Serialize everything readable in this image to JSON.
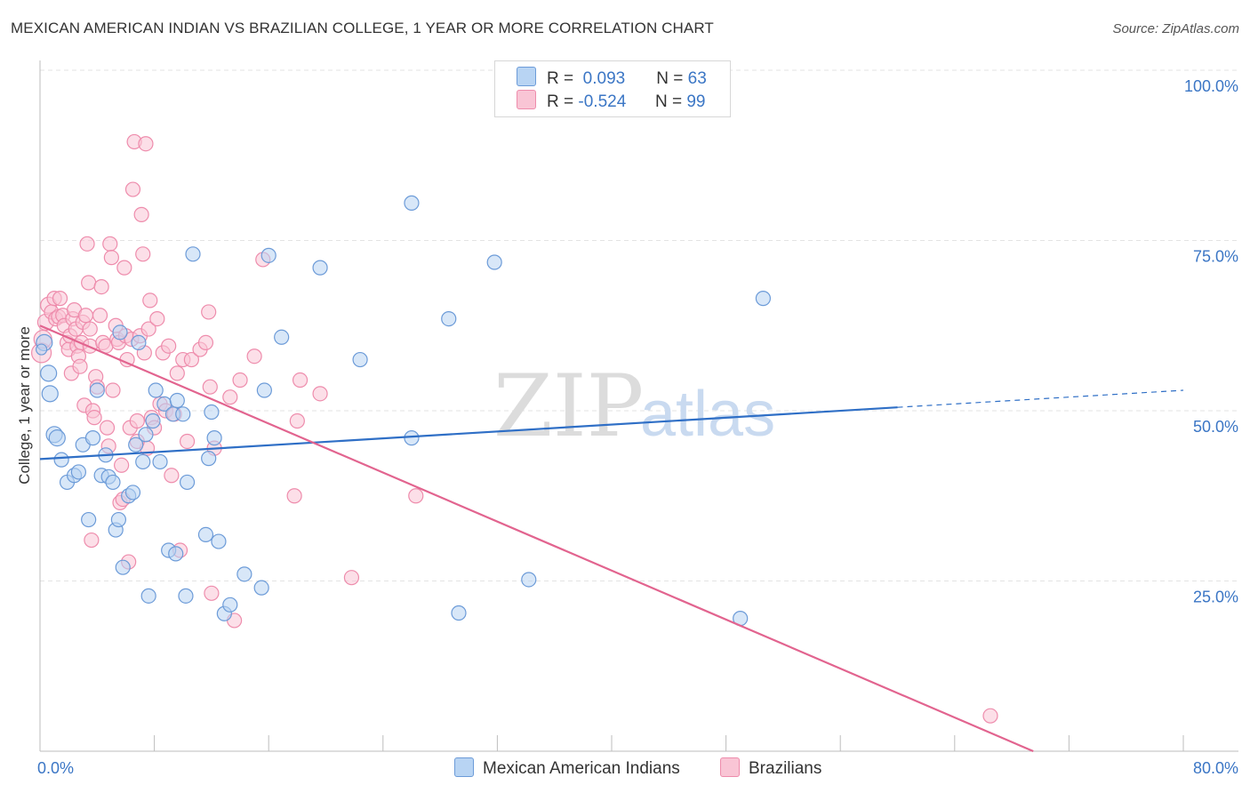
{
  "title": "MEXICAN AMERICAN INDIAN VS BRAZILIAN COLLEGE, 1 YEAR OR MORE CORRELATION CHART",
  "source": "Source: ZipAtlas.com",
  "watermark": {
    "zip": "ZIP",
    "atlas": "atlas"
  },
  "colors": {
    "blue_fill": "#b8d4f3",
    "blue_stroke": "#6c9bd8",
    "blue_line": "#2f6fc6",
    "pink_fill": "#f9c5d5",
    "pink_stroke": "#ee8cac",
    "pink_line": "#e2648f",
    "grid": "#e3e3e3",
    "tick_text": "#3b76c5"
  },
  "legend": {
    "rows": [
      {
        "r_label": "R =",
        "r_value": "0.093",
        "n_label": "N =",
        "n_value": "63",
        "color": "#b8d4f3",
        "border": "#6c9bd8"
      },
      {
        "r_label": "R =",
        "r_value": "-0.524",
        "n_label": "N =",
        "n_value": "99",
        "color": "#f9c5d5",
        "border": "#ee8cac"
      }
    ]
  },
  "bottom_legend": [
    {
      "label": "Mexican American Indians",
      "color": "#b8d4f3",
      "border": "#6c9bd8"
    },
    {
      "label": "Brazilians",
      "color": "#f9c5d5",
      "border": "#ee8cac"
    }
  ],
  "chart_data": {
    "type": "scatter",
    "title": "MEXICAN AMERICAN INDIAN VS BRAZILIAN COLLEGE, 1 YEAR OR MORE CORRELATION CHART",
    "xlabel": "",
    "ylabel": "College, 1 year or more",
    "xlim": [
      0,
      80
    ],
    "ylim": [
      0,
      100
    ],
    "x_tick_labels": [
      {
        "value": 0,
        "label": "0.0%"
      },
      {
        "value": 80,
        "label": "80.0%"
      }
    ],
    "y_tick_labels": [
      {
        "value": 100,
        "label": "100.0%"
      },
      {
        "value": 75,
        "label": "75.0%"
      },
      {
        "value": 50,
        "label": "50.0%"
      },
      {
        "value": 25,
        "label": "25.0%"
      }
    ],
    "y_gridlines": [
      100,
      75,
      50,
      25
    ],
    "series": [
      {
        "name": "Mexican American Indians",
        "R": 0.093,
        "N": 63,
        "trend": {
          "x0": 0,
          "y0": 42.9,
          "x1": 60,
          "y1": 50.5,
          "dashed_to_x": 80,
          "dashed_to_y": 53.0
        },
        "points": [
          [
            0.3,
            60.0,
            9
          ],
          [
            0.6,
            55.5,
            9
          ],
          [
            0.7,
            52.5,
            9
          ],
          [
            1.0,
            46.5,
            9
          ],
          [
            1.2,
            46.0,
            9
          ],
          [
            1.5,
            42.8,
            8
          ],
          [
            1.9,
            39.5,
            8
          ],
          [
            2.4,
            40.5,
            8
          ],
          [
            2.7,
            41.0,
            8
          ],
          [
            3.0,
            45.0,
            8
          ],
          [
            3.4,
            34.0,
            8
          ],
          [
            3.7,
            46.0,
            8
          ],
          [
            4.0,
            53.0,
            8
          ],
          [
            4.3,
            40.5,
            8
          ],
          [
            4.6,
            43.5,
            8
          ],
          [
            4.8,
            40.3,
            8
          ],
          [
            5.1,
            39.5,
            8
          ],
          [
            5.3,
            32.5,
            8
          ],
          [
            5.5,
            34.0,
            8
          ],
          [
            5.6,
            61.5,
            8
          ],
          [
            5.8,
            27.0,
            8
          ],
          [
            6.2,
            37.5,
            8
          ],
          [
            6.5,
            38.0,
            8
          ],
          [
            6.7,
            45.0,
            8
          ],
          [
            6.9,
            60.0,
            8
          ],
          [
            7.2,
            42.5,
            8
          ],
          [
            7.4,
            46.5,
            8
          ],
          [
            7.6,
            22.8,
            8
          ],
          [
            7.9,
            48.5,
            8
          ],
          [
            8.1,
            53.0,
            8
          ],
          [
            8.4,
            42.5,
            8
          ],
          [
            8.7,
            51.0,
            8
          ],
          [
            9.0,
            29.5,
            8
          ],
          [
            9.3,
            49.5,
            8
          ],
          [
            9.5,
            29.0,
            8
          ],
          [
            9.6,
            51.5,
            8
          ],
          [
            10.0,
            49.5,
            8
          ],
          [
            10.2,
            22.8,
            8
          ],
          [
            10.3,
            39.5,
            8
          ],
          [
            10.7,
            73.0,
            8
          ],
          [
            11.6,
            31.8,
            8
          ],
          [
            11.8,
            43.0,
            8
          ],
          [
            12.0,
            49.8,
            8
          ],
          [
            12.2,
            46.0,
            8
          ],
          [
            12.5,
            30.8,
            8
          ],
          [
            12.9,
            20.2,
            8
          ],
          [
            13.3,
            21.5,
            8
          ],
          [
            14.3,
            26.0,
            8
          ],
          [
            15.5,
            24.0,
            8
          ],
          [
            15.7,
            53.0,
            8
          ],
          [
            16.0,
            72.8,
            8
          ],
          [
            16.9,
            60.8,
            8
          ],
          [
            19.6,
            71.0,
            8
          ],
          [
            22.4,
            57.5,
            8
          ],
          [
            26.0,
            80.5,
            8
          ],
          [
            26.0,
            46.0,
            8
          ],
          [
            28.6,
            63.5,
            8
          ],
          [
            29.3,
            20.3,
            8
          ],
          [
            31.8,
            71.8,
            8
          ],
          [
            34.2,
            25.2,
            8
          ],
          [
            49.0,
            19.5,
            8
          ],
          [
            50.6,
            66.5,
            8
          ],
          [
            0.1,
            59.0,
            6
          ]
        ]
      },
      {
        "name": "Brazilians",
        "R": -0.524,
        "N": 99,
        "trend": {
          "x0": 0,
          "y0": 62.5,
          "x1": 69.5,
          "y1": 0
        },
        "points": [
          [
            0.1,
            58.5,
            11
          ],
          [
            0.2,
            60.5,
            10
          ],
          [
            0.4,
            63.0,
            9
          ],
          [
            0.6,
            65.5,
            9
          ],
          [
            0.8,
            64.5,
            8
          ],
          [
            1.0,
            66.5,
            8
          ],
          [
            1.1,
            63.5,
            8
          ],
          [
            1.3,
            63.8,
            8
          ],
          [
            1.4,
            66.5,
            8
          ],
          [
            1.6,
            64.0,
            8
          ],
          [
            1.7,
            62.5,
            8
          ],
          [
            1.9,
            60.0,
            8
          ],
          [
            2.0,
            59.0,
            8
          ],
          [
            2.1,
            61.0,
            8
          ],
          [
            2.2,
            55.5,
            8
          ],
          [
            2.3,
            63.5,
            8
          ],
          [
            2.4,
            64.8,
            8
          ],
          [
            2.5,
            62.0,
            8
          ],
          [
            2.6,
            59.5,
            8
          ],
          [
            2.7,
            58.0,
            8
          ],
          [
            2.8,
            56.5,
            8
          ],
          [
            2.9,
            60.0,
            8
          ],
          [
            3.0,
            63.0,
            8
          ],
          [
            3.1,
            50.8,
            8
          ],
          [
            3.2,
            64.0,
            8
          ],
          [
            3.3,
            74.5,
            8
          ],
          [
            3.4,
            68.8,
            8
          ],
          [
            3.5,
            59.5,
            8
          ],
          [
            3.6,
            31.0,
            8
          ],
          [
            3.7,
            50.0,
            8
          ],
          [
            3.8,
            49.0,
            8
          ],
          [
            3.9,
            55.0,
            8
          ],
          [
            4.0,
            53.5,
            8
          ],
          [
            4.2,
            64.0,
            8
          ],
          [
            4.3,
            68.2,
            8
          ],
          [
            4.4,
            60.0,
            8
          ],
          [
            4.6,
            59.5,
            8
          ],
          [
            4.7,
            47.5,
            8
          ],
          [
            4.8,
            44.8,
            8
          ],
          [
            4.9,
            74.5,
            8
          ],
          [
            5.0,
            72.5,
            8
          ],
          [
            5.1,
            53.0,
            8
          ],
          [
            5.3,
            62.5,
            8
          ],
          [
            5.4,
            60.5,
            8
          ],
          [
            5.5,
            60.0,
            8
          ],
          [
            5.6,
            36.5,
            8
          ],
          [
            5.7,
            42.0,
            8
          ],
          [
            5.8,
            37.0,
            8
          ],
          [
            5.9,
            71.0,
            8
          ],
          [
            6.0,
            61.0,
            8
          ],
          [
            6.1,
            57.5,
            8
          ],
          [
            6.2,
            27.8,
            8
          ],
          [
            6.3,
            47.5,
            8
          ],
          [
            6.4,
            60.5,
            8
          ],
          [
            6.5,
            82.5,
            8
          ],
          [
            6.6,
            89.5,
            8
          ],
          [
            6.8,
            48.5,
            8
          ],
          [
            7.0,
            61.0,
            8
          ],
          [
            7.1,
            78.8,
            8
          ],
          [
            7.2,
            73.0,
            8
          ],
          [
            7.3,
            58.5,
            8
          ],
          [
            7.4,
            89.2,
            8
          ],
          [
            7.5,
            44.5,
            8
          ],
          [
            7.6,
            62.0,
            8
          ],
          [
            7.7,
            66.2,
            8
          ],
          [
            7.8,
            49.0,
            8
          ],
          [
            8.0,
            47.5,
            8
          ],
          [
            8.2,
            63.5,
            8
          ],
          [
            8.4,
            51.0,
            8
          ],
          [
            8.6,
            58.5,
            8
          ],
          [
            8.8,
            50.0,
            8
          ],
          [
            9.0,
            59.5,
            8
          ],
          [
            9.2,
            40.5,
            8
          ],
          [
            9.6,
            55.5,
            8
          ],
          [
            9.8,
            29.5,
            8
          ],
          [
            10.0,
            57.5,
            8
          ],
          [
            10.3,
            45.5,
            8
          ],
          [
            10.6,
            57.5,
            8
          ],
          [
            11.2,
            59.0,
            8
          ],
          [
            11.6,
            60.0,
            8
          ],
          [
            11.8,
            64.5,
            8
          ],
          [
            11.9,
            53.5,
            8
          ],
          [
            12.0,
            23.2,
            8
          ],
          [
            12.2,
            44.5,
            8
          ],
          [
            13.3,
            52.0,
            8
          ],
          [
            13.6,
            19.2,
            8
          ],
          [
            14.0,
            54.5,
            8
          ],
          [
            15.0,
            58.0,
            8
          ],
          [
            15.6,
            72.2,
            8
          ],
          [
            17.8,
            37.5,
            8
          ],
          [
            18.0,
            48.5,
            8
          ],
          [
            18.2,
            54.5,
            8
          ],
          [
            19.6,
            52.5,
            8
          ],
          [
            21.8,
            25.5,
            8
          ],
          [
            26.3,
            37.5,
            8
          ],
          [
            66.5,
            5.2,
            8
          ],
          [
            3.5,
            62.0,
            8
          ],
          [
            6.8,
            45.5,
            8
          ],
          [
            9.4,
            49.5,
            8
          ]
        ]
      }
    ]
  }
}
